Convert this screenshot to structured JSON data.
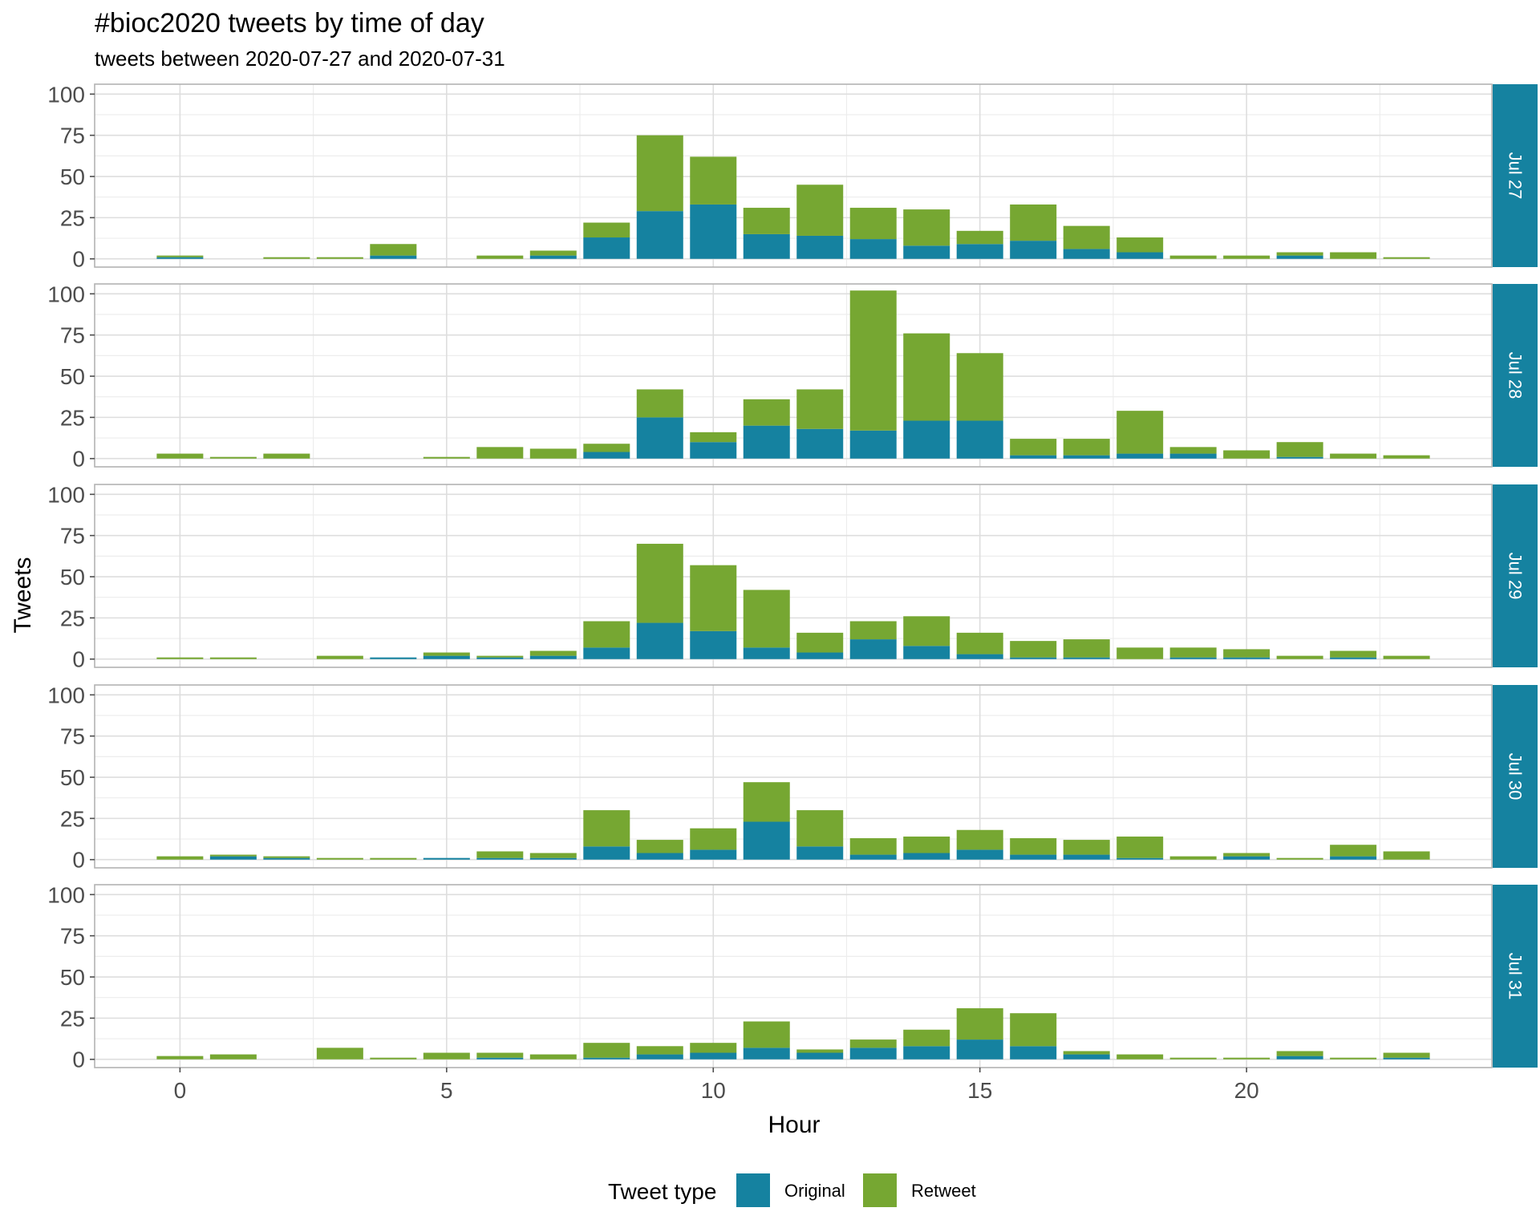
{
  "chart_data": {
    "type": "bar",
    "stacked": true,
    "title": "#bioc2020 tweets by time of day",
    "subtitle": "tweets between 2020-07-27 and 2020-07-31",
    "xlabel": "Hour",
    "ylabel": "Tweets",
    "xlim": [
      -1.6,
      24.6
    ],
    "ylim": [
      -5,
      106
    ],
    "x_ticks": [
      0,
      5,
      10,
      15,
      20
    ],
    "y_ticks": [
      0,
      25,
      50,
      75,
      100
    ],
    "grid": true,
    "legend": {
      "title": "Tweet type",
      "position": "bottom",
      "entries": [
        {
          "name": "Original",
          "color": "#1582A0"
        },
        {
          "name": "Retweet",
          "color": "#76A732"
        }
      ]
    },
    "facets": [
      {
        "label": "Jul 27",
        "hours": [
          0,
          2,
          3,
          4,
          6,
          7,
          8,
          9,
          10,
          11,
          12,
          13,
          14,
          15,
          16,
          17,
          18,
          19,
          20,
          21,
          22,
          23
        ],
        "original": [
          1,
          0,
          0,
          2,
          0,
          2,
          13,
          29,
          33,
          15,
          14,
          12,
          8,
          9,
          11,
          6,
          4,
          0,
          0,
          2,
          0,
          0
        ],
        "retweet": [
          1,
          1,
          1,
          7,
          2,
          3,
          9,
          46,
          29,
          16,
          31,
          19,
          22,
          8,
          22,
          14,
          9,
          2,
          2,
          2,
          4,
          1
        ]
      },
      {
        "label": "Jul 28",
        "hours": [
          0,
          1,
          2,
          5,
          6,
          7,
          8,
          9,
          10,
          11,
          12,
          13,
          14,
          15,
          16,
          17,
          18,
          19,
          20,
          21,
          22,
          23
        ],
        "original": [
          0,
          0,
          0,
          0,
          0,
          0,
          4,
          25,
          10,
          20,
          18,
          17,
          23,
          23,
          2,
          2,
          3,
          3,
          0,
          1,
          0,
          0
        ],
        "retweet": [
          3,
          1,
          3,
          1,
          7,
          6,
          5,
          17,
          6,
          16,
          24,
          85,
          53,
          41,
          10,
          10,
          26,
          4,
          5,
          9,
          3,
          2
        ]
      },
      {
        "label": "Jul 29",
        "hours": [
          0,
          1,
          3,
          4,
          5,
          6,
          7,
          8,
          9,
          10,
          11,
          12,
          13,
          14,
          15,
          16,
          17,
          18,
          19,
          20,
          21,
          22,
          23
        ],
        "original": [
          0,
          0,
          0,
          1,
          2,
          1,
          2,
          7,
          22,
          17,
          7,
          4,
          12,
          8,
          3,
          1,
          1,
          0,
          1,
          1,
          0,
          1,
          0
        ],
        "retweet": [
          1,
          1,
          2,
          0,
          2,
          1,
          3,
          16,
          48,
          40,
          35,
          12,
          11,
          18,
          13,
          10,
          11,
          7,
          6,
          5,
          2,
          4,
          2
        ]
      },
      {
        "label": "Jul 30",
        "hours": [
          0,
          1,
          2,
          3,
          4,
          5,
          6,
          7,
          8,
          9,
          10,
          11,
          12,
          13,
          14,
          15,
          16,
          17,
          18,
          19,
          20,
          21,
          22,
          23
        ],
        "original": [
          0,
          2,
          1,
          0,
          0,
          1,
          1,
          1,
          8,
          4,
          6,
          23,
          8,
          3,
          4,
          6,
          3,
          3,
          1,
          0,
          2,
          0,
          2,
          0
        ],
        "retweet": [
          2,
          1,
          1,
          1,
          1,
          0,
          4,
          3,
          22,
          8,
          13,
          24,
          22,
          10,
          10,
          12,
          10,
          9,
          13,
          2,
          2,
          1,
          7,
          5
        ]
      },
      {
        "label": "Jul 31",
        "hours": [
          0,
          1,
          3,
          4,
          5,
          6,
          7,
          8,
          9,
          10,
          11,
          12,
          13,
          14,
          15,
          16,
          17,
          18,
          19,
          20,
          21,
          22,
          23
        ],
        "original": [
          0,
          0,
          0,
          0,
          0,
          1,
          0,
          1,
          3,
          4,
          7,
          4,
          7,
          8,
          12,
          8,
          3,
          0,
          0,
          0,
          2,
          0,
          1
        ],
        "retweet": [
          2,
          3,
          7,
          1,
          4,
          3,
          3,
          9,
          5,
          6,
          16,
          2,
          5,
          10,
          19,
          20,
          2,
          3,
          1,
          1,
          3,
          1,
          3
        ]
      }
    ]
  }
}
